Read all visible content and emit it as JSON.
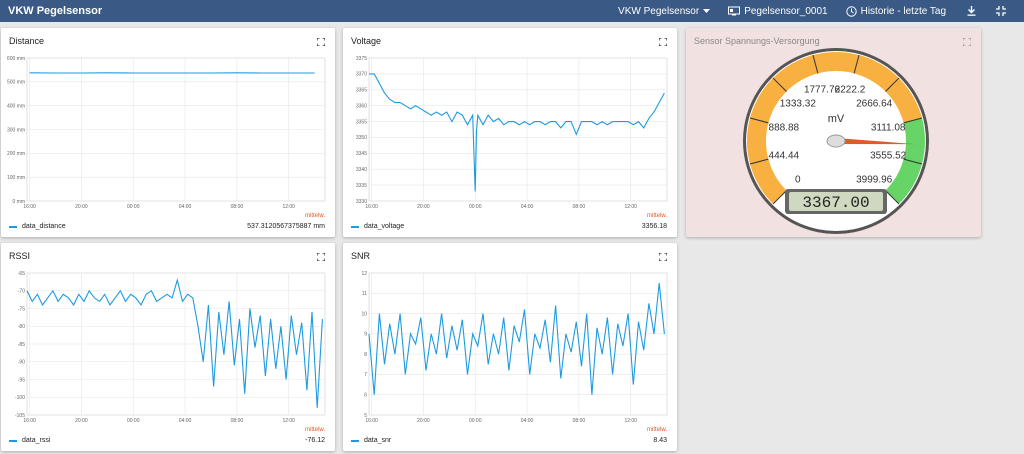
{
  "app": {
    "title": "VKW Pegelsensor",
    "menu": {
      "dropdown_label": "VKW Pegelsensor",
      "sensor_label": "Pegelsensor_0001",
      "history_label": "Historie - letzte Tag",
      "icons": [
        "chevron-down-icon",
        "sensor-device-icon",
        "history-clock-icon",
        "download-icon",
        "fullscreen-icon"
      ]
    }
  },
  "colors": {
    "topbar": "#3a5a85",
    "series": "#1e9be0",
    "accent_orange": "#e05a2a",
    "gauge_yellow": "#f8b040",
    "gauge_green": "#66d466",
    "gauge_card_bg": "#f2e1e1"
  },
  "x_ticks": [
    "16:00",
    "20:00",
    "00:00",
    "04:00",
    "08:00",
    "12:00"
  ],
  "mitt_label": "mittelw.",
  "cards": {
    "distance": {
      "title": "Distance",
      "legend": "data_distance",
      "value": "537.3120567375887 mm"
    },
    "voltage": {
      "title": "Voltage",
      "legend": "data_voltage",
      "value": "3356.18"
    },
    "rssi": {
      "title": "RSSI",
      "legend": "data_rssi",
      "value": "-76.12"
    },
    "snr": {
      "title": "SNR",
      "legend": "data_snr",
      "value": "8.43"
    },
    "gauge": {
      "title": "Sensor Spannungs-Versorgung"
    }
  },
  "chart_data": [
    {
      "type": "line",
      "title": "Distance",
      "series": [
        {
          "name": "data_distance",
          "x": [
            16,
            18,
            20,
            22,
            24,
            26,
            28,
            30,
            32,
            34,
            36,
            38
          ],
          "values": [
            538,
            537,
            537,
            538,
            537,
            537,
            537,
            537,
            538,
            537,
            537,
            537
          ]
        }
      ],
      "yticks": [
        "0 mm",
        "100 mm",
        "200 mm",
        "300 mm",
        "400 mm",
        "500 mm",
        "600 mm"
      ],
      "ylim": [
        0,
        600
      ],
      "xlim": [
        15.8,
        38.8
      ],
      "grid": true,
      "legend_position": "bottom-left"
    },
    {
      "type": "line",
      "title": "Voltage",
      "series": [
        {
          "name": "data_voltage",
          "x": [
            15.8,
            16.2,
            16.6,
            17.0,
            17.4,
            17.8,
            18.2,
            18.6,
            19.0,
            19.4,
            19.8,
            20.2,
            20.6,
            21.0,
            21.4,
            21.8,
            22.2,
            22.6,
            23.0,
            23.4,
            23.8,
            24.0,
            24.1,
            24.2,
            24.6,
            25.0,
            25.4,
            25.8,
            26.2,
            26.6,
            27.0,
            27.4,
            27.8,
            28.2,
            28.6,
            29.0,
            29.4,
            29.8,
            30.2,
            30.6,
            31.0,
            31.4,
            31.8,
            32.2,
            32.6,
            33.0,
            33.4,
            33.8,
            34.2,
            34.6,
            35.0,
            35.4,
            35.8,
            36.2,
            36.6,
            37.0,
            37.4,
            37.8,
            38.2,
            38.6
          ],
          "values": [
            3370,
            3370,
            3367,
            3364,
            3362,
            3361,
            3361,
            3360,
            3359,
            3360,
            3359,
            3358,
            3357,
            3358,
            3357,
            3358,
            3355,
            3358,
            3357,
            3354,
            3357,
            3333,
            3352,
            3357,
            3354,
            3357,
            3355,
            3356,
            3354,
            3355,
            3355,
            3354,
            3355,
            3354,
            3355,
            3355,
            3354,
            3355,
            3355,
            3353,
            3355,
            3355,
            3351,
            3355,
            3355,
            3355,
            3354,
            3355,
            3354,
            3355,
            3355,
            3355,
            3355,
            3354,
            3355,
            3353,
            3356,
            3358,
            3361,
            3364
          ]
        }
      ],
      "yticks": [
        "3330",
        "3335",
        "3340",
        "3345",
        "3350",
        "3355",
        "3360",
        "3365",
        "3370",
        "3375"
      ],
      "ylim": [
        3330,
        3375
      ],
      "xlim": [
        15.8,
        38.8
      ],
      "grid": true,
      "legend_position": "bottom-left"
    },
    {
      "type": "line",
      "title": "RSSI",
      "series": [
        {
          "name": "data_rssi",
          "x": [
            15.8,
            16.2,
            16.6,
            17.0,
            17.4,
            17.8,
            18.2,
            18.6,
            19.0,
            19.4,
            19.8,
            20.2,
            20.6,
            21.0,
            21.4,
            21.8,
            22.2,
            22.6,
            23.0,
            23.4,
            23.8,
            24.2,
            24.6,
            25.0,
            25.4,
            25.8,
            26.2,
            26.6,
            27.0,
            27.4,
            27.8,
            28.2,
            28.6,
            29.0,
            29.4,
            29.8,
            30.2,
            30.6,
            31.0,
            31.4,
            31.8,
            32.2,
            32.6,
            33.0,
            33.4,
            33.8,
            34.2,
            34.6,
            35.0,
            35.4,
            35.8,
            36.2,
            36.6,
            37.0,
            37.4,
            37.8,
            38.2,
            38.6
          ],
          "values": [
            -70,
            -73,
            -71,
            -74,
            -72,
            -70,
            -73,
            -71,
            -72,
            -74,
            -71,
            -73,
            -70,
            -72,
            -73,
            -71,
            -74,
            -72,
            -70,
            -73,
            -71,
            -72,
            -74,
            -71,
            -70,
            -73,
            -72,
            -71,
            -72,
            -67,
            -73,
            -71,
            -72,
            -80,
            -90,
            -74,
            -97,
            -76,
            -88,
            -73,
            -91,
            -78,
            -99,
            -75,
            -86,
            -77,
            -94,
            -78,
            -92,
            -80,
            -95,
            -77,
            -88,
            -79,
            -98,
            -76,
            -103,
            -78
          ]
        }
      ],
      "yticks": [
        "-105",
        "-100",
        "-95",
        "-90",
        "-85",
        "-80",
        "-75",
        "-70",
        "-65"
      ],
      "ylim": [
        -105,
        -65
      ],
      "xlim": [
        15.8,
        38.8
      ],
      "grid": true,
      "legend_position": "bottom-left"
    },
    {
      "type": "line",
      "title": "SNR",
      "series": [
        {
          "name": "data_snr",
          "x": [
            15.8,
            16.2,
            16.6,
            17.0,
            17.4,
            17.8,
            18.2,
            18.6,
            19.0,
            19.4,
            19.8,
            20.2,
            20.6,
            21.0,
            21.4,
            21.8,
            22.2,
            22.6,
            23.0,
            23.4,
            23.8,
            24.2,
            24.6,
            25.0,
            25.4,
            25.8,
            26.2,
            26.6,
            27.0,
            27.4,
            27.8,
            28.2,
            28.6,
            29.0,
            29.4,
            29.8,
            30.2,
            30.6,
            31.0,
            31.4,
            31.8,
            32.2,
            32.6,
            33.0,
            33.4,
            33.8,
            34.2,
            34.6,
            35.0,
            35.4,
            35.8,
            36.2,
            36.6,
            37.0,
            37.4,
            37.8,
            38.2,
            38.6
          ],
          "values": [
            9,
            6,
            10,
            7.5,
            9.5,
            8,
            10,
            7,
            9,
            8.5,
            9.8,
            7.2,
            9,
            8,
            10,
            7.8,
            9.4,
            8.2,
            9.7,
            7,
            9,
            8.4,
            10,
            7.5,
            9,
            8,
            9.8,
            7.2,
            9.4,
            8.6,
            10.2,
            7,
            9,
            8.3,
            9.7,
            7.6,
            10.4,
            6.8,
            9,
            8.1,
            9.6,
            7.4,
            10,
            6,
            9.3,
            8,
            9.8,
            7,
            9.5,
            8.4,
            10,
            6.5,
            9.6,
            8.2,
            10.5,
            9,
            11.5,
            9
          ]
        }
      ],
      "yticks": [
        "5",
        "6",
        "7",
        "8",
        "9",
        "10",
        "11",
        "12"
      ],
      "ylim": [
        5,
        12
      ],
      "xlim": [
        15.8,
        38.8
      ],
      "grid": true,
      "legend_position": "bottom-left"
    },
    {
      "type": "gauge",
      "title": "Sensor Spannungs-Versorgung",
      "unit": "mV",
      "min": 0,
      "max": 4000,
      "value": 3367.0,
      "display": "3367.00",
      "scale_labels": [
        "0",
        "444.44",
        "888.88",
        "1333.32",
        "1777.76",
        "2222.2",
        "2666.64",
        "3111.08",
        "3555.52",
        "3999.96"
      ]
    }
  ]
}
